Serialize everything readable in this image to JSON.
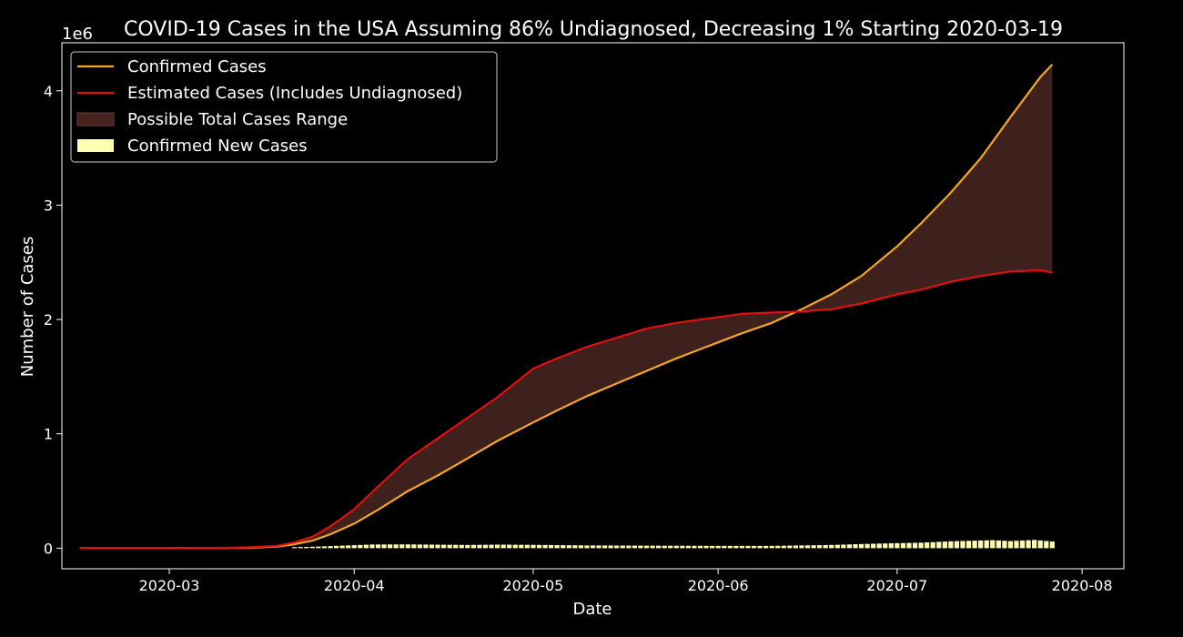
{
  "chart_data": {
    "type": "line",
    "title": "COVID-19 Cases in the USA Assuming 86% Undiagnosed, Decreasing 1% Starting 2020-03-19",
    "xlabel": "Date",
    "ylabel": "Number of Cases",
    "y_offset_text": "1e6",
    "ylim": [
      -180000,
      4420000
    ],
    "xlim": [
      "2020-02-12",
      "2020-08-08"
    ],
    "x_ticks": [
      "2020-03",
      "2020-04",
      "2020-05",
      "2020-06",
      "2020-07",
      "2020-08"
    ],
    "x_tick_dates": [
      "2020-03-01",
      "2020-04-01",
      "2020-05-01",
      "2020-06-01",
      "2020-07-01",
      "2020-08-01"
    ],
    "y_ticks": [
      0,
      1000000,
      2000000,
      3000000,
      4000000
    ],
    "y_tick_labels": [
      "0",
      "1",
      "2",
      "3",
      "4"
    ],
    "grid": false,
    "legend_position": "top-left",
    "legend": [
      {
        "label": "Confirmed Cases",
        "kind": "line",
        "color": "#f5a623"
      },
      {
        "label": "Estimated Cases (Includes Undiagnosed)",
        "kind": "line",
        "color": "#e01010"
      },
      {
        "label": "Possible Total Cases Range",
        "kind": "area",
        "color": "#452420"
      },
      {
        "label": "Confirmed New Cases",
        "kind": "bar",
        "color": "#ffffb3"
      }
    ],
    "series": [
      {
        "name": "Confirmed Cases",
        "color": "#f5a623",
        "points": [
          [
            "2020-02-15",
            0
          ],
          [
            "2020-03-01",
            0
          ],
          [
            "2020-03-10",
            1000
          ],
          [
            "2020-03-15",
            3500
          ],
          [
            "2020-03-19",
            14000
          ],
          [
            "2020-03-22",
            34000
          ],
          [
            "2020-03-25",
            66000
          ],
          [
            "2020-03-28",
            122000
          ],
          [
            "2020-04-01",
            215000
          ],
          [
            "2020-04-05",
            336000
          ],
          [
            "2020-04-10",
            500000
          ],
          [
            "2020-04-15",
            636000
          ],
          [
            "2020-04-20",
            785000
          ],
          [
            "2020-04-25",
            938000
          ],
          [
            "2020-05-01",
            1100000
          ],
          [
            "2020-05-05",
            1205000
          ],
          [
            "2020-05-10",
            1330000
          ],
          [
            "2020-05-15",
            1440000
          ],
          [
            "2020-05-20",
            1550000
          ],
          [
            "2020-05-25",
            1660000
          ],
          [
            "2020-06-01",
            1800000
          ],
          [
            "2020-06-05",
            1880000
          ],
          [
            "2020-06-10",
            1970000
          ],
          [
            "2020-06-15",
            2090000
          ],
          [
            "2020-06-20",
            2220000
          ],
          [
            "2020-06-25",
            2380000
          ],
          [
            "2020-07-01",
            2640000
          ],
          [
            "2020-07-05",
            2840000
          ],
          [
            "2020-07-10",
            3110000
          ],
          [
            "2020-07-15",
            3410000
          ],
          [
            "2020-07-20",
            3770000
          ],
          [
            "2020-07-25",
            4120000
          ],
          [
            "2020-07-27",
            4230000
          ]
        ]
      },
      {
        "name": "Estimated Cases (Includes Undiagnosed)",
        "color": "#e01010",
        "points": [
          [
            "2020-02-15",
            0
          ],
          [
            "2020-03-01",
            0
          ],
          [
            "2020-03-10",
            2000
          ],
          [
            "2020-03-15",
            8000
          ],
          [
            "2020-03-19",
            20000
          ],
          [
            "2020-03-22",
            50000
          ],
          [
            "2020-03-25",
            100000
          ],
          [
            "2020-03-28",
            190000
          ],
          [
            "2020-04-01",
            340000
          ],
          [
            "2020-04-05",
            540000
          ],
          [
            "2020-04-10",
            780000
          ],
          [
            "2020-04-15",
            960000
          ],
          [
            "2020-04-20",
            1140000
          ],
          [
            "2020-04-25",
            1320000
          ],
          [
            "2020-05-01",
            1570000
          ],
          [
            "2020-05-05",
            1660000
          ],
          [
            "2020-05-10",
            1760000
          ],
          [
            "2020-05-15",
            1840000
          ],
          [
            "2020-05-20",
            1920000
          ],
          [
            "2020-05-25",
            1970000
          ],
          [
            "2020-06-01",
            2020000
          ],
          [
            "2020-06-05",
            2050000
          ],
          [
            "2020-06-10",
            2060000
          ],
          [
            "2020-06-15",
            2070000
          ],
          [
            "2020-06-20",
            2090000
          ],
          [
            "2020-06-25",
            2140000
          ],
          [
            "2020-07-01",
            2220000
          ],
          [
            "2020-07-05",
            2260000
          ],
          [
            "2020-07-10",
            2330000
          ],
          [
            "2020-07-15",
            2380000
          ],
          [
            "2020-07-20",
            2420000
          ],
          [
            "2020-07-25",
            2430000
          ],
          [
            "2020-07-27",
            2410000
          ]
        ]
      }
    ],
    "new_cases_bars": {
      "name": "Confirmed New Cases",
      "color": "#ffffb3",
      "start": "2020-03-22",
      "end": "2020-07-27",
      "points": [
        [
          "2020-03-22",
          9000
        ],
        [
          "2020-03-26",
          14000
        ],
        [
          "2020-04-01",
          26000
        ],
        [
          "2020-04-04",
          32000
        ],
        [
          "2020-04-10",
          33000
        ],
        [
          "2020-04-20",
          28000
        ],
        [
          "2020-04-25",
          31000
        ],
        [
          "2020-05-01",
          29000
        ],
        [
          "2020-05-10",
          24000
        ],
        [
          "2020-05-20",
          22000
        ],
        [
          "2020-06-01",
          20000
        ],
        [
          "2020-06-10",
          20000
        ],
        [
          "2020-06-20",
          28000
        ],
        [
          "2020-06-25",
          36000
        ],
        [
          "2020-07-01",
          44000
        ],
        [
          "2020-07-05",
          48000
        ],
        [
          "2020-07-10",
          60000
        ],
        [
          "2020-07-17",
          70000
        ],
        [
          "2020-07-20",
          62000
        ],
        [
          "2020-07-24",
          72000
        ],
        [
          "2020-07-27",
          58000
        ]
      ]
    }
  }
}
